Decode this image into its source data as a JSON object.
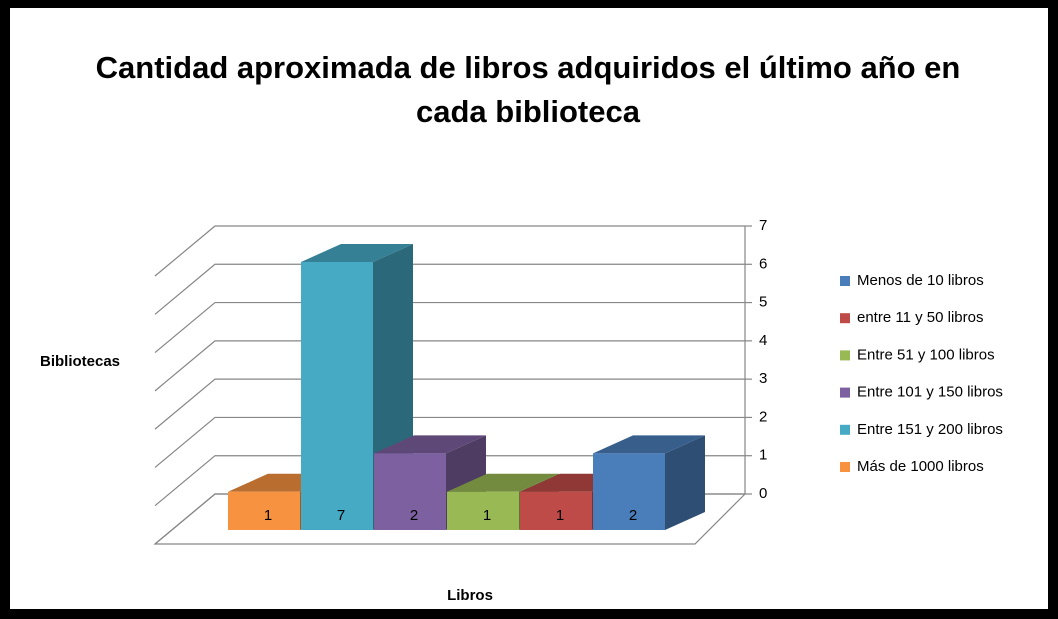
{
  "chart_data": {
    "type": "bar3d",
    "title": "Cantidad aproximada de libros adquiridos el último año en cada biblioteca",
    "y_axis_label": "Bibliotecas",
    "x_axis_label": "Libros",
    "ylim": [
      0,
      7
    ],
    "yticks": [
      0,
      1,
      2,
      3,
      4,
      5,
      6,
      7
    ],
    "grid": true,
    "legend": "right",
    "series": [
      {
        "name": "Menos de 10 libros",
        "color": "#4a7ebb",
        "values": [
          2
        ]
      },
      {
        "name": "entre 11 y 50 libros",
        "color": "#be4b48",
        "values": [
          1
        ]
      },
      {
        "name": "Entre 51 y 100 libros",
        "color": "#98b954",
        "values": [
          1
        ]
      },
      {
        "name": "Entre 101 y 150 libros",
        "color": "#7d60a0",
        "values": [
          2
        ]
      },
      {
        "name": "Entre 151 y 200 libros",
        "color": "#46aac5",
        "values": [
          7
        ]
      },
      {
        "name": "Más de 1000 libros",
        "color": "#f69240",
        "values": [
          1
        ]
      }
    ]
  }
}
